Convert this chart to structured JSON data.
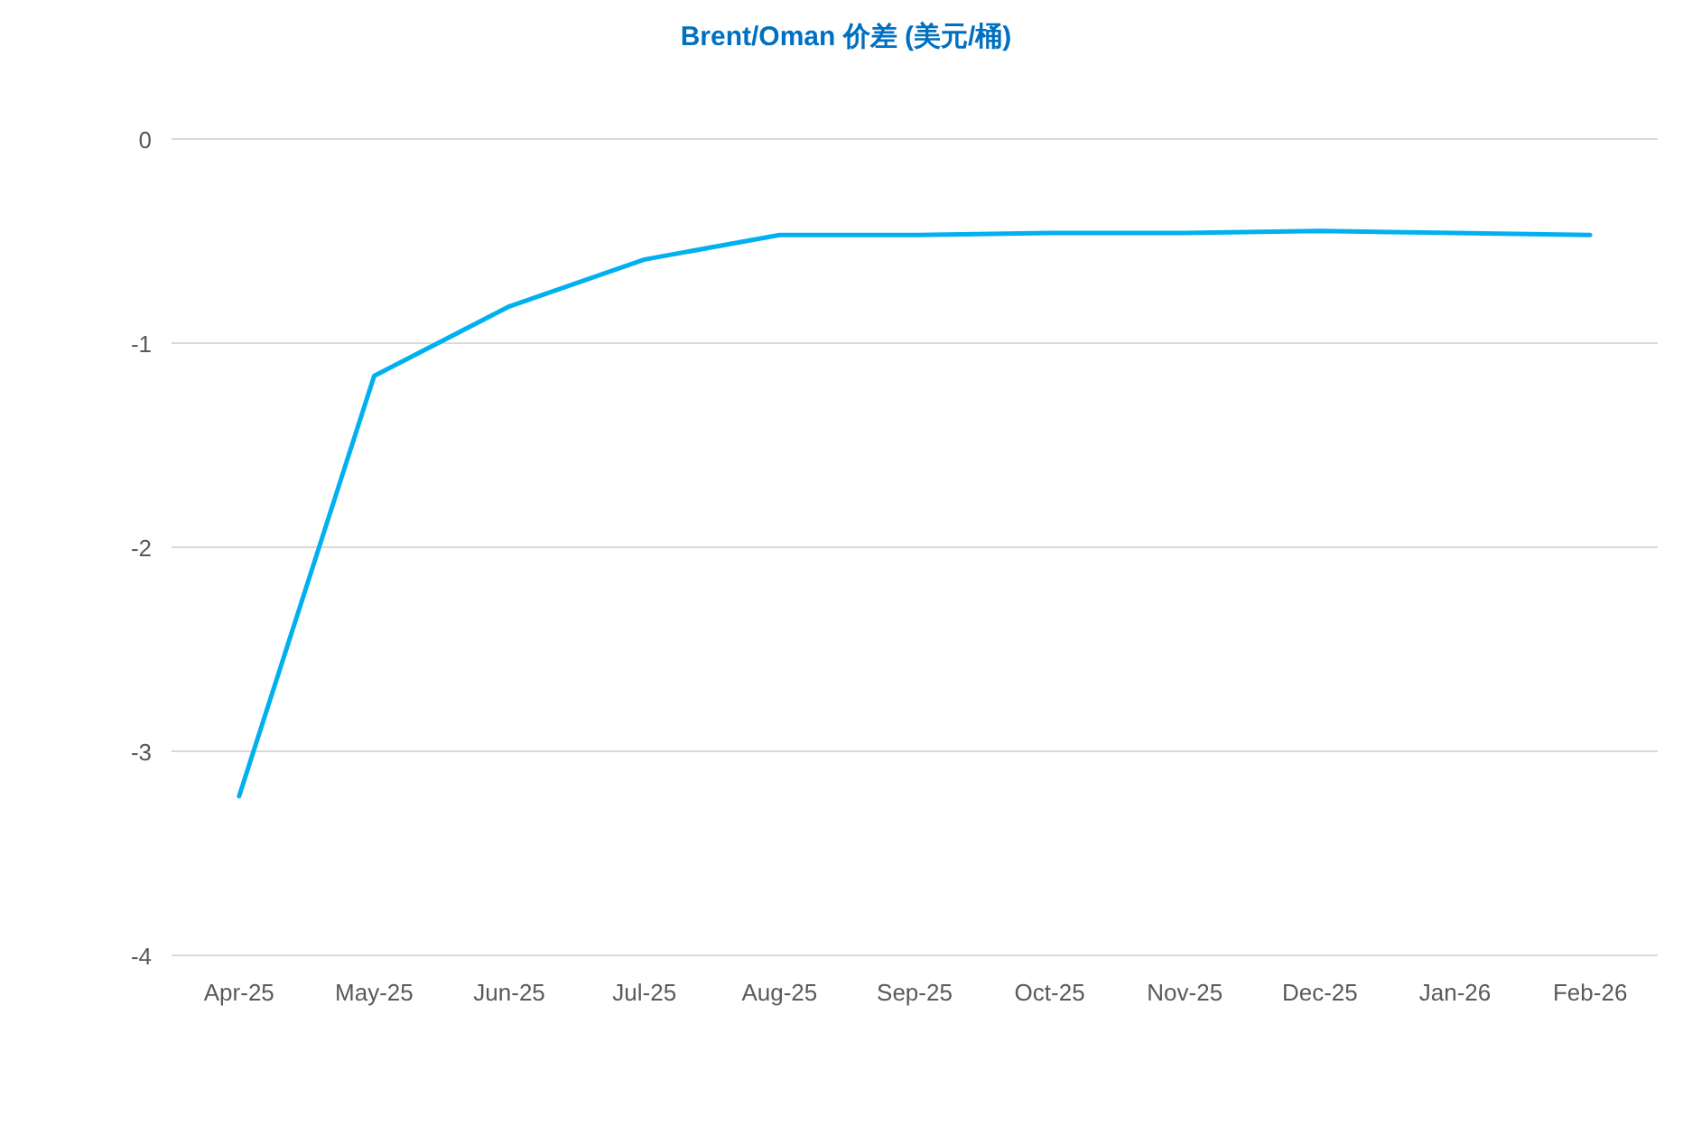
{
  "chart_data": {
    "type": "line",
    "title": "Brent/Oman 价差 (美元/桶)",
    "categories": [
      "Apr-25",
      "May-25",
      "Jun-25",
      "Jul-25",
      "Aug-25",
      "Sep-25",
      "Oct-25",
      "Nov-25",
      "Dec-25",
      "Jan-26",
      "Feb-26"
    ],
    "series": [
      {
        "color": "#00b0f0",
        "values": [
          -3.22,
          -1.16,
          -0.82,
          -0.59,
          -0.47,
          -0.47,
          -0.46,
          -0.46,
          -0.45,
          -0.46,
          -0.47
        ]
      }
    ],
    "ylim": [
      -4,
      0
    ],
    "yticks": [
      -4,
      -3,
      -2,
      -1,
      0
    ],
    "grid": "y"
  }
}
